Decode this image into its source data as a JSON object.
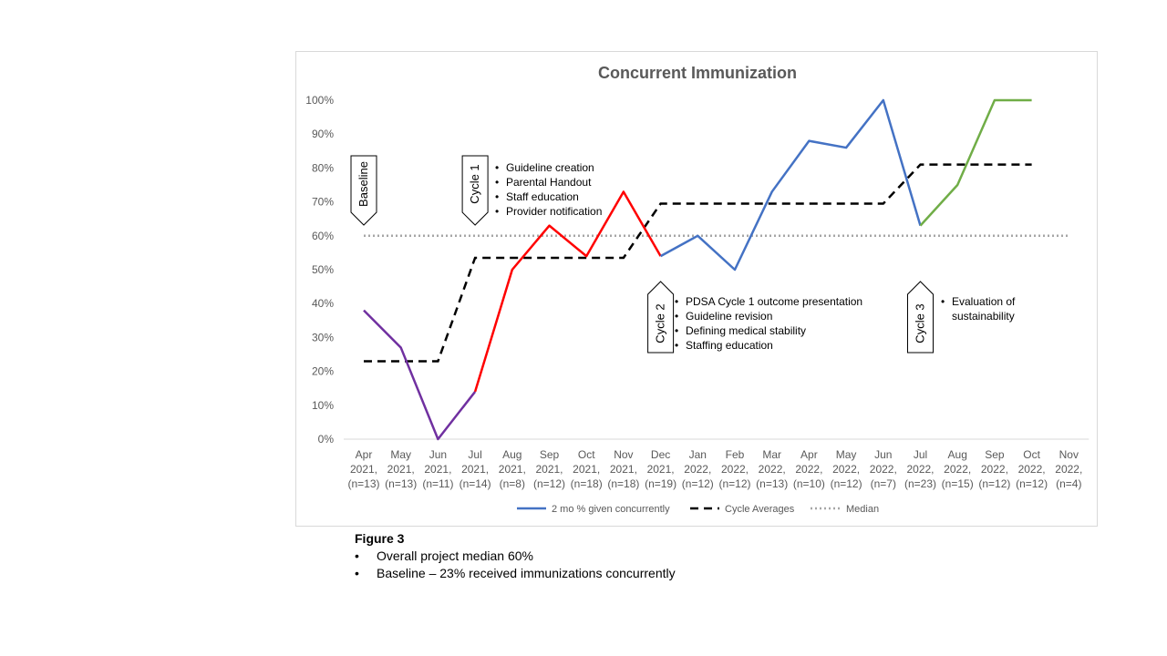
{
  "chart_data": {
    "type": "line",
    "title": "Concurrent Immunization",
    "xlabel": "",
    "ylabel": "",
    "ylim": [
      0,
      100
    ],
    "yticks": [
      "0%",
      "10%",
      "20%",
      "30%",
      "40%",
      "50%",
      "60%",
      "70%",
      "80%",
      "90%",
      "100%"
    ],
    "categories": [
      [
        "Apr",
        "2021,",
        "(n=13)"
      ],
      [
        "May",
        "2021,",
        "(n=13)"
      ],
      [
        "Jun",
        "2021,",
        "(n=11)"
      ],
      [
        "Jul",
        "2021,",
        "(n=14)"
      ],
      [
        "Aug",
        "2021,",
        "(n=8)"
      ],
      [
        "Sep",
        "2021,",
        "(n=12)"
      ],
      [
        "Oct",
        "2021,",
        "(n=18)"
      ],
      [
        "Nov",
        "2021,",
        "(n=18)"
      ],
      [
        "Dec",
        "2021,",
        "(n=19)"
      ],
      [
        "Jan",
        "2022,",
        "(n=12)"
      ],
      [
        "Feb",
        "2022,",
        "(n=12)"
      ],
      [
        "Mar",
        "2022,",
        "(n=13)"
      ],
      [
        "Apr",
        "2022,",
        "(n=10)"
      ],
      [
        "May",
        "2022,",
        "(n=12)"
      ],
      [
        "Jun",
        "2022,",
        "(n=7)"
      ],
      [
        "Jul",
        "2022,",
        "(n=23)"
      ],
      [
        "Aug",
        "2022,",
        "(n=15)"
      ],
      [
        "Sep",
        "2022,",
        "(n=12)"
      ],
      [
        "Oct",
        "2022,",
        "(n=12)"
      ],
      [
        "Nov",
        "2022,",
        "(n=4)"
      ]
    ],
    "series": [
      {
        "name": "2 mo % given concurrently",
        "values": [
          38,
          27,
          0,
          14,
          50,
          63,
          54,
          73,
          54,
          60,
          50,
          73,
          88,
          86,
          100,
          63,
          75,
          100,
          100,
          null
        ],
        "segments": [
          {
            "from": 0,
            "to": 3,
            "color": "#7030a0"
          },
          {
            "from": 3,
            "to": 8,
            "color": "#ff0000"
          },
          {
            "from": 8,
            "to": 15,
            "color": "#4472c4"
          },
          {
            "from": 15,
            "to": 18,
            "color": "#70ad47"
          }
        ],
        "legend_color": "#4472c4"
      },
      {
        "name": "Cycle Averages",
        "values": [
          23,
          23,
          23,
          53.5,
          53.5,
          53.5,
          53.5,
          53.5,
          69.5,
          69.5,
          69.5,
          69.5,
          69.5,
          69.5,
          69.5,
          81,
          81,
          81,
          81,
          null
        ],
        "color": "#000000",
        "style": "dashed"
      },
      {
        "name": "Median",
        "values": [
          60,
          60,
          60,
          60,
          60,
          60,
          60,
          60,
          60,
          60,
          60,
          60,
          60,
          60,
          60,
          60,
          60,
          60,
          60,
          60
        ],
        "color": "#a6a6a6",
        "style": "dotted"
      }
    ],
    "legend_position": "bottom",
    "grid": false,
    "markers": [
      {
        "label": "Baseline",
        "at": 0,
        "pointer": "down"
      },
      {
        "label": "Cycle 1",
        "at": 3,
        "pointer": "down"
      },
      {
        "label": "Cycle 2",
        "at": 8,
        "pointer": "up"
      },
      {
        "label": "Cycle 3",
        "at": 15,
        "pointer": "up"
      }
    ],
    "annotations": [
      {
        "group": "cycle-1-notes",
        "items": [
          "Guideline creation",
          "Parental Handout",
          "Staff education",
          "Provider notification"
        ]
      },
      {
        "group": "cycle-2-notes",
        "items": [
          "PDSA Cycle 1 outcome presentation",
          "Guideline revision",
          "Defining medical stability",
          "Staffing education"
        ]
      },
      {
        "group": "cycle-3-notes",
        "items": [
          "Evaluation of",
          "sustainability"
        ]
      }
    ]
  },
  "caption": {
    "title": "Figure 3",
    "bullet": "•",
    "lines": [
      "Overall project median 60%",
      "Baseline – 23% received immunizations concurrently"
    ]
  }
}
